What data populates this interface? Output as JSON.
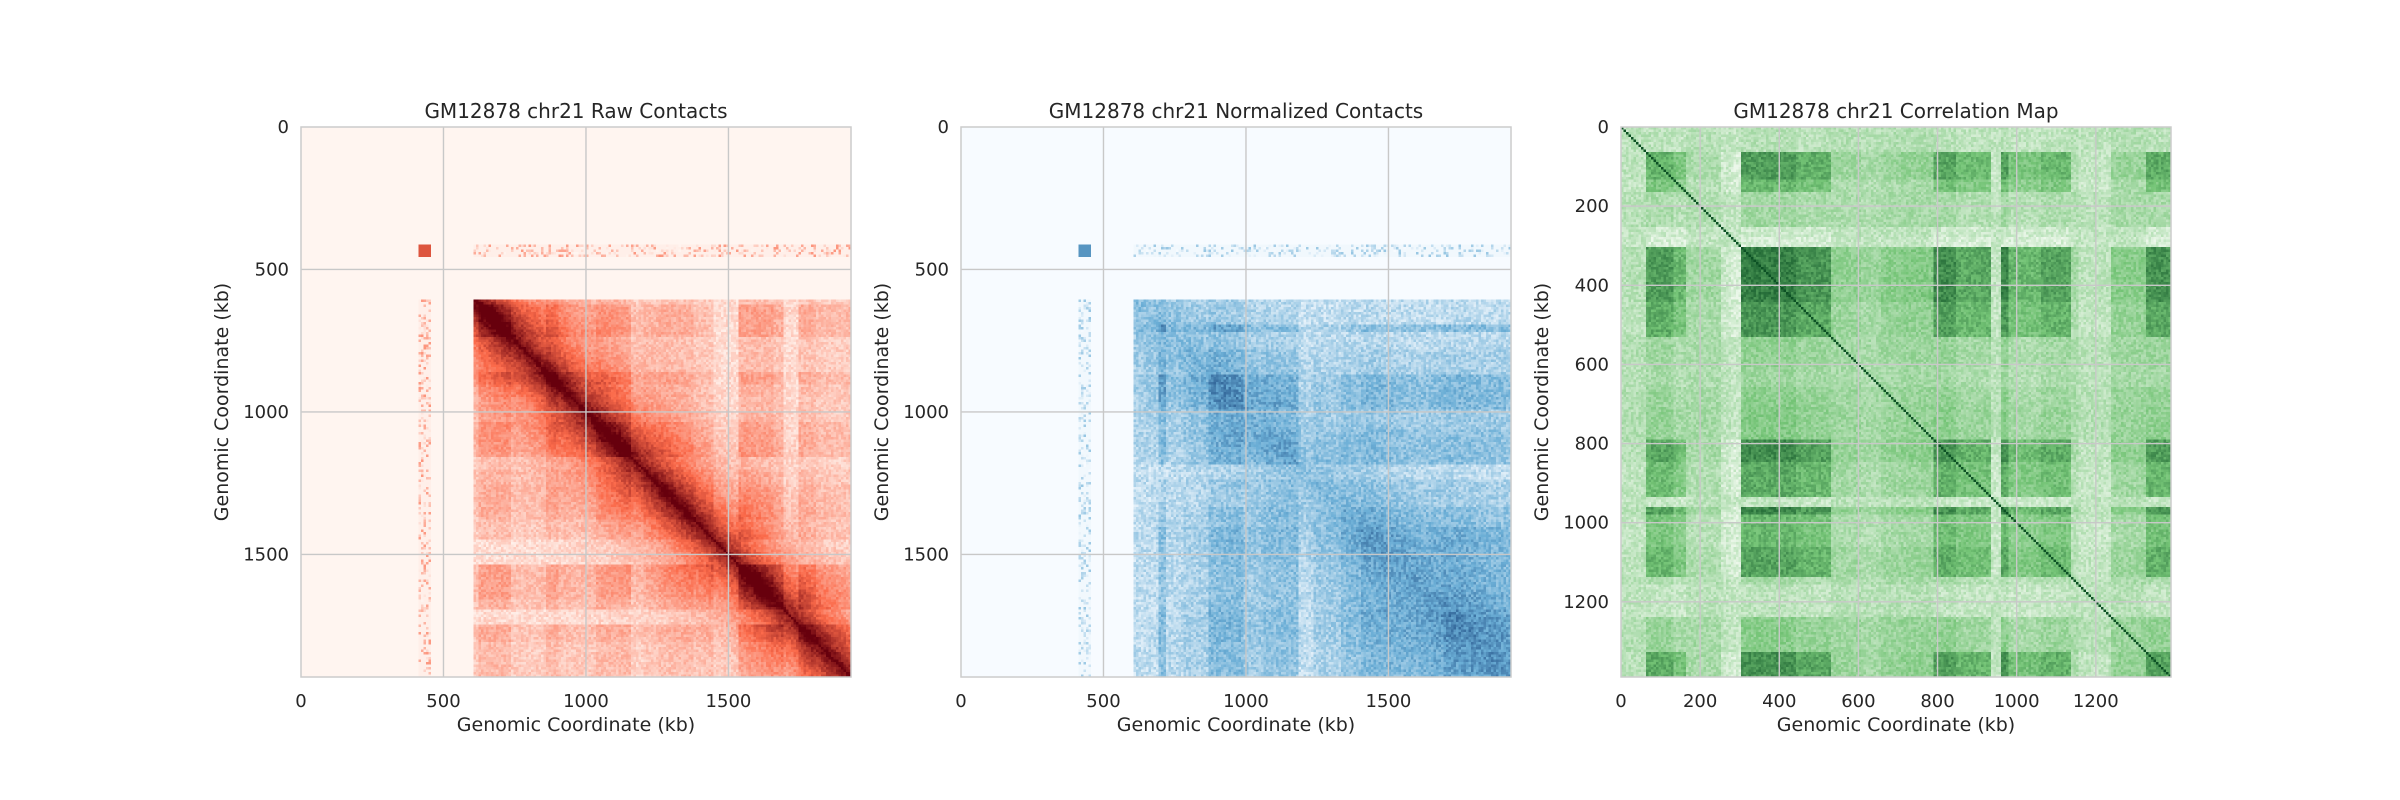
{
  "chart_data": [
    {
      "type": "heatmap",
      "title": "GM12878 chr21 Raw Contacts",
      "xlabel": "Genomic Coordinate (kb)",
      "ylabel": "Genomic Coordinate (kb)",
      "colormap": "Reds",
      "xlim": [
        0,
        1930
      ],
      "ylim": [
        1930,
        0
      ],
      "x_ticks": [
        0,
        500,
        1000,
        1500
      ],
      "y_ticks": [
        0,
        500,
        1000,
        1500
      ],
      "grid": true,
      "empty_region_end": 610,
      "sparse_band": [
        420,
        440
      ],
      "colors": {
        "low": "#fff5f0",
        "mid": "#fb6a4a",
        "high": "#67000d"
      }
    },
    {
      "type": "heatmap",
      "title": "GM12878 chr21 Normalized Contacts",
      "xlabel": "Genomic Coordinate (kb)",
      "ylabel": "Genomic Coordinate (kb)",
      "colormap": "Blues",
      "xlim": [
        0,
        1930
      ],
      "ylim": [
        1930,
        0
      ],
      "x_ticks": [
        0,
        500,
        1000,
        1500
      ],
      "y_ticks": [
        0,
        500,
        1000,
        1500
      ],
      "grid": true,
      "empty_region_end": 610,
      "sparse_band": [
        420,
        440
      ],
      "colors": {
        "low": "#f7fbff",
        "mid": "#6baed6",
        "high": "#08306b"
      }
    },
    {
      "type": "heatmap",
      "title": "GM12878 chr21 Correlation Map",
      "xlabel": "Genomic Coordinate (kb)",
      "ylabel": "Genomic Coordinate (kb)",
      "colormap": "Greens",
      "xlim": [
        0,
        1390
      ],
      "ylim": [
        1390,
        0
      ],
      "x_ticks": [
        0,
        200,
        400,
        600,
        800,
        1000,
        1200
      ],
      "y_ticks": [
        0,
        200,
        400,
        600,
        800,
        1000,
        1200
      ],
      "grid": true,
      "colors": {
        "low": "#f7fcf5",
        "mid": "#74c476",
        "high": "#00441b"
      }
    }
  ]
}
